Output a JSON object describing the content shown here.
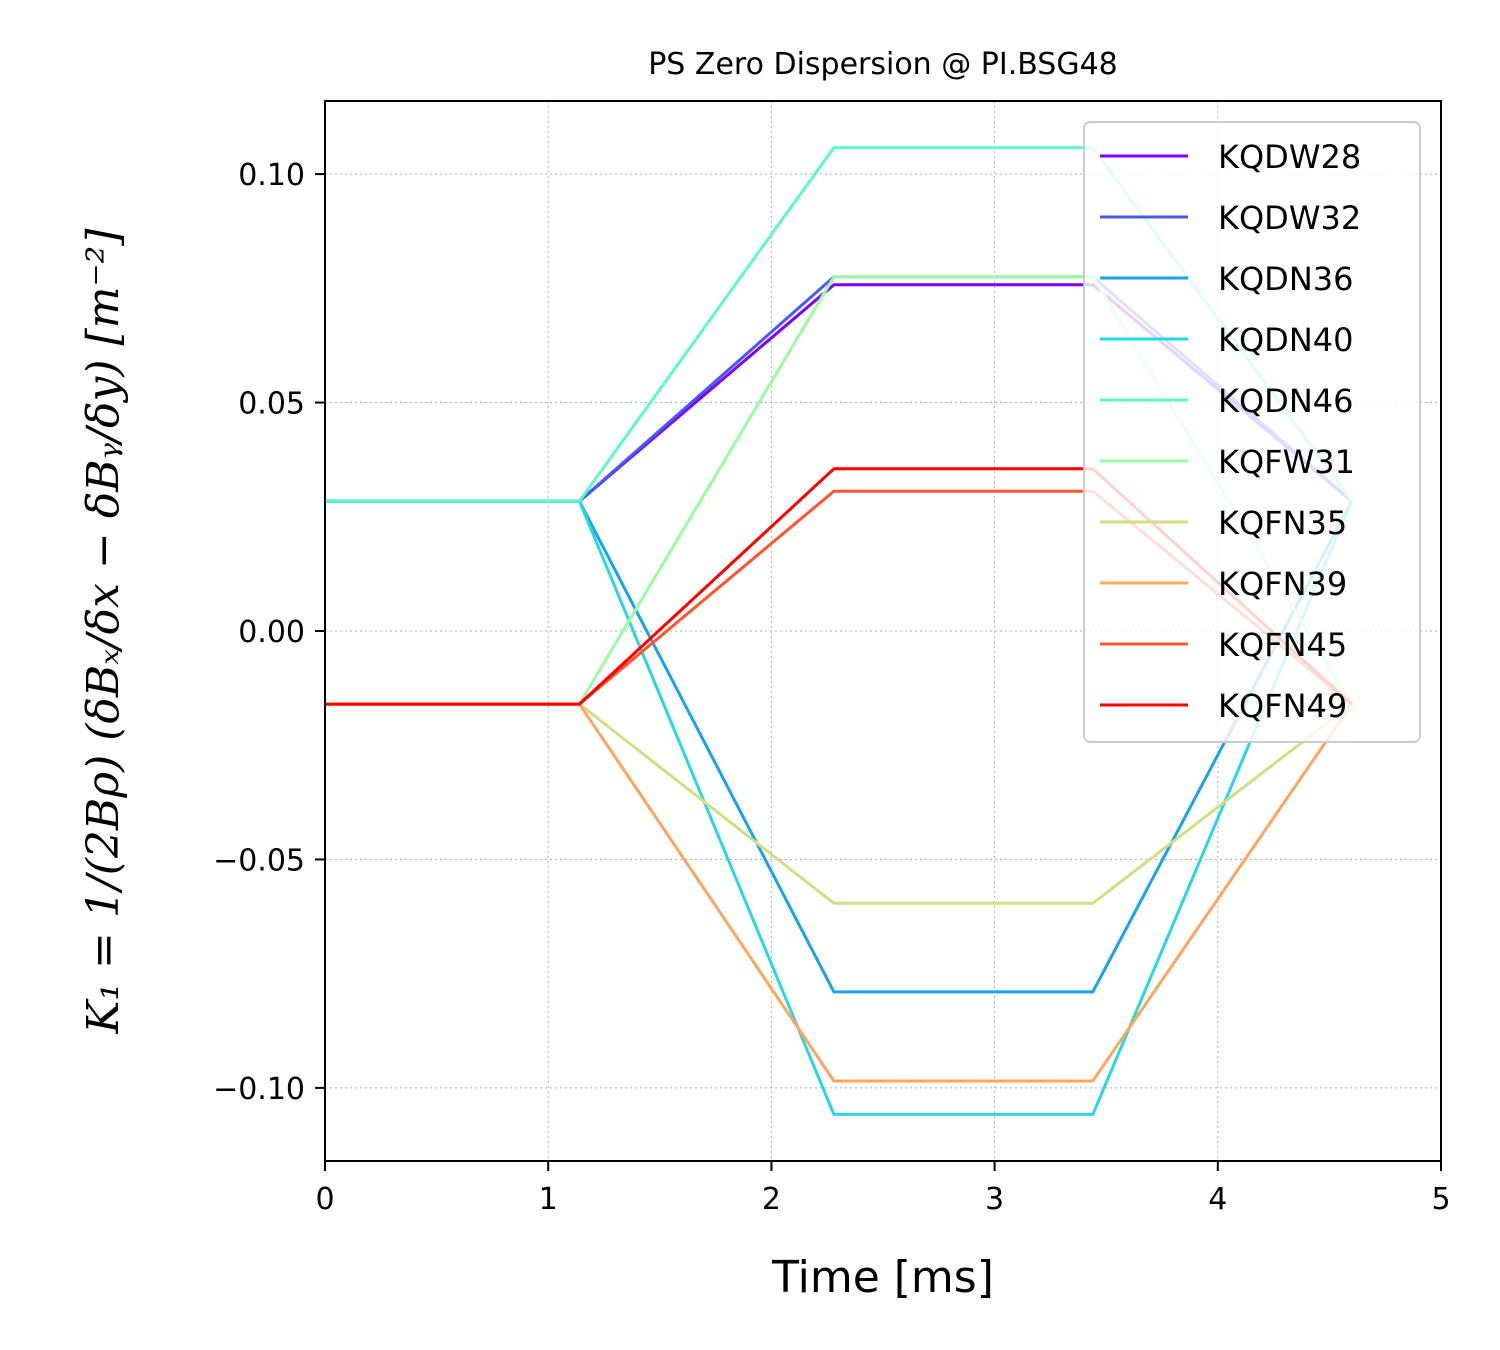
{
  "chart_data": {
    "type": "line",
    "title": "PS Zero Dispersion @ PI.BSG48",
    "xlabel": "Time [ms]",
    "ylabel": "K₁ = 1/(2Bρ) (δBₓ/δx − δBᵧ/δy) [m⁻²]",
    "xlim": [
      0,
      5
    ],
    "ylim": [
      -0.116,
      0.116
    ],
    "xticks": [
      0,
      1,
      2,
      3,
      4,
      5
    ],
    "xtick_labels": [
      "0",
      "1",
      "2",
      "3",
      "4",
      "5"
    ],
    "yticks": [
      0.1,
      0.05,
      0.0,
      -0.05,
      -0.1
    ],
    "ytick_labels": [
      "0.10",
      "0.05",
      "0.00",
      "−0.05",
      "−0.10"
    ],
    "grid": true,
    "legend_position": "upper-right",
    "x": [
      0,
      1.14,
      2.28,
      3.44,
      4.6
    ],
    "series": [
      {
        "name": "KQDW28",
        "color": "#7f00ff",
        "values": [
          0.0284,
          0.0284,
          0.0758,
          0.0758,
          0.0284
        ]
      },
      {
        "name": "KQDW32",
        "color": "#4a57fb",
        "values": [
          0.0284,
          0.0284,
          0.0775,
          0.0775,
          0.0284
        ]
      },
      {
        "name": "KQDN36",
        "color": "#17a3f0",
        "values": [
          0.0284,
          0.0284,
          -0.079,
          -0.079,
          0.0284
        ]
      },
      {
        "name": "KQDN40",
        "color": "#26d9df",
        "values": [
          0.0284,
          0.0284,
          -0.1058,
          -0.1058,
          0.0284
        ]
      },
      {
        "name": "KQDN46",
        "color": "#5cf9c9",
        "values": [
          0.0284,
          0.0284,
          0.1058,
          0.1058,
          0.0284
        ]
      },
      {
        "name": "KQFW31",
        "color": "#9afba3",
        "values": [
          -0.016,
          -0.016,
          0.0775,
          0.0775,
          -0.016
        ]
      },
      {
        "name": "KQFN35",
        "color": "#d1de83",
        "values": [
          -0.016,
          -0.016,
          -0.0596,
          -0.0596,
          -0.016
        ]
      },
      {
        "name": "KQFN39",
        "color": "#ffa55e",
        "values": [
          -0.016,
          -0.016,
          -0.0985,
          -0.0985,
          -0.016
        ]
      },
      {
        "name": "KQFN45",
        "color": "#ff5530",
        "values": [
          -0.016,
          -0.016,
          0.0306,
          0.0306,
          -0.016
        ]
      },
      {
        "name": "KQFN49",
        "color": "#ff0000",
        "values": [
          -0.016,
          -0.016,
          0.0355,
          0.0355,
          -0.016
        ]
      }
    ]
  }
}
